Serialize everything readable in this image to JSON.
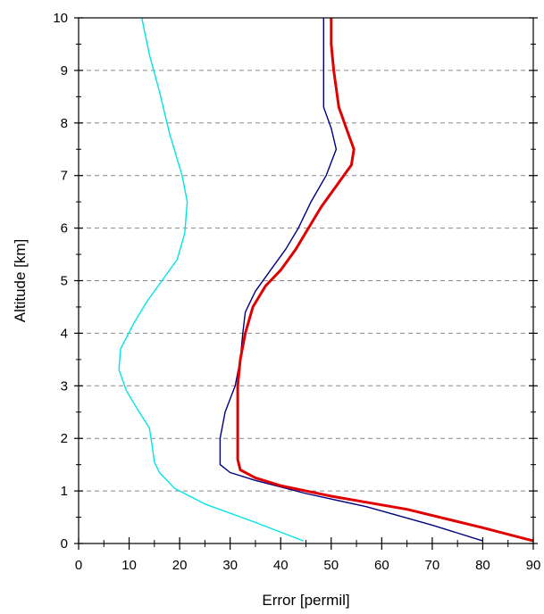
{
  "chart_data": {
    "type": "line",
    "title": "",
    "xlabel": "Error [permil]",
    "ylabel": "Altitude [km]",
    "xlim": [
      0,
      90
    ],
    "ylim": [
      0,
      10
    ],
    "x_ticks": [
      0,
      10,
      20,
      30,
      40,
      50,
      60,
      70,
      80,
      90
    ],
    "y_ticks": [
      0,
      1,
      2,
      3,
      4,
      5,
      6,
      7,
      8,
      9,
      10
    ],
    "grid": "horizontal dashed",
    "legend": "none",
    "series": [
      {
        "color": "#00e5e5",
        "line_width": "thin",
        "points": [
          [
            44.5,
            0.05
          ],
          [
            35,
            0.4
          ],
          [
            25,
            0.75
          ],
          [
            19,
            1.05
          ],
          [
            16,
            1.35
          ],
          [
            15,
            1.55
          ],
          [
            14.5,
            1.9
          ],
          [
            14,
            2.2
          ],
          [
            12,
            2.5
          ],
          [
            9.5,
            2.9
          ],
          [
            8,
            3.3
          ],
          [
            8.3,
            3.7
          ],
          [
            11,
            4.2
          ],
          [
            13.5,
            4.6
          ],
          [
            16.5,
            5.0
          ],
          [
            19.5,
            5.4
          ],
          [
            21,
            5.9
          ],
          [
            21.5,
            6.5
          ],
          [
            20.5,
            7.0
          ],
          [
            18,
            7.8
          ],
          [
            16,
            8.6
          ],
          [
            14,
            9.3
          ],
          [
            12.5,
            10.0
          ]
        ]
      },
      {
        "color": "#000080",
        "line_width": "thin",
        "points": [
          [
            80,
            0.05
          ],
          [
            70,
            0.35
          ],
          [
            57,
            0.7
          ],
          [
            45,
            0.95
          ],
          [
            35,
            1.2
          ],
          [
            30,
            1.35
          ],
          [
            28,
            1.5
          ],
          [
            28,
            2.0
          ],
          [
            29,
            2.5
          ],
          [
            31,
            3.0
          ],
          [
            32,
            3.5
          ],
          [
            32.5,
            4.0
          ],
          [
            33,
            4.4
          ],
          [
            35,
            4.8
          ],
          [
            38,
            5.2
          ],
          [
            41,
            5.6
          ],
          [
            43.5,
            6.0
          ],
          [
            46,
            6.5
          ],
          [
            49,
            7.0
          ],
          [
            51,
            7.5
          ],
          [
            50,
            7.9
          ],
          [
            48.5,
            8.3
          ],
          [
            48.5,
            9.0
          ],
          [
            48.5,
            10.0
          ]
        ]
      },
      {
        "color": "#e00000",
        "line_width": "thick",
        "points": [
          [
            90,
            0.05
          ],
          [
            80,
            0.3
          ],
          [
            65,
            0.65
          ],
          [
            50,
            0.9
          ],
          [
            40,
            1.1
          ],
          [
            35,
            1.25
          ],
          [
            32,
            1.4
          ],
          [
            31.5,
            1.6
          ],
          [
            31.5,
            2.0
          ],
          [
            31.5,
            2.5
          ],
          [
            31.5,
            3.0
          ],
          [
            32,
            3.5
          ],
          [
            33,
            4.0
          ],
          [
            34.5,
            4.5
          ],
          [
            37,
            4.9
          ],
          [
            40,
            5.2
          ],
          [
            43,
            5.6
          ],
          [
            45.5,
            6.0
          ],
          [
            48,
            6.4
          ],
          [
            51,
            6.8
          ],
          [
            54,
            7.2
          ],
          [
            54.5,
            7.5
          ],
          [
            53,
            7.9
          ],
          [
            51.5,
            8.3
          ],
          [
            50.5,
            9.0
          ],
          [
            50,
            9.5
          ],
          [
            50,
            10.0
          ]
        ]
      }
    ]
  }
}
